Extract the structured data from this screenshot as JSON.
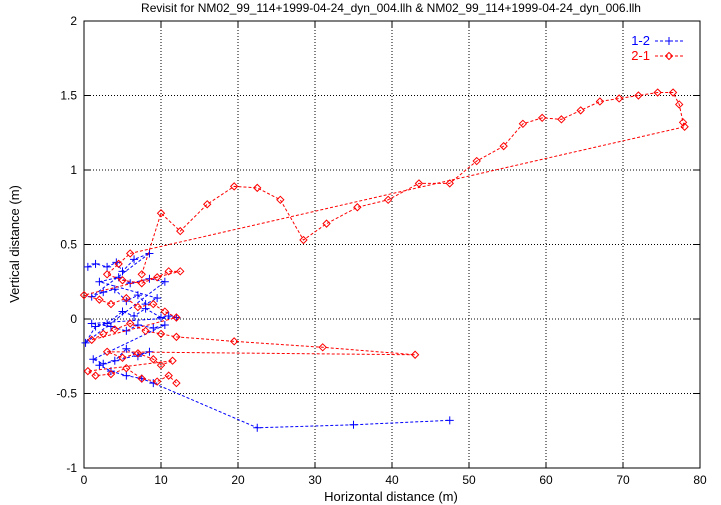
{
  "chart_data": {
    "type": "line",
    "title": "Revisit for NM02_99_114+1999-04-24_dyn_004.llh & NM02_99_114+1999-04-24_dyn_006.llh",
    "xlabel": "Horizontal distance (m)",
    "ylabel": "Vertical distance (m)",
    "xlim": [
      0,
      80
    ],
    "ylim": [
      -1,
      2
    ],
    "xticks": [
      "0",
      "10",
      "20",
      "30",
      "40",
      "50",
      "60",
      "70",
      "80"
    ],
    "yticks": [
      "-1",
      "-0.5",
      "0",
      "0.5",
      "1",
      "1.5",
      "2"
    ],
    "grid": true,
    "legend_position": "top-right",
    "series": [
      {
        "name": "1-2",
        "color": "#0000ff",
        "marker": "plus",
        "points": [
          [
            0.5,
            0.35
          ],
          [
            1.5,
            0.37
          ],
          [
            3.0,
            0.35
          ],
          [
            4.2,
            0.38
          ],
          [
            5.0,
            0.32
          ],
          [
            6.5,
            0.4
          ],
          [
            8.5,
            0.44
          ],
          [
            1.0,
            0.15
          ],
          [
            2.5,
            0.18
          ],
          [
            4.0,
            0.2
          ],
          [
            5.5,
            0.12
          ],
          [
            7.0,
            0.16
          ],
          [
            8.0,
            0.1
          ],
          [
            9.5,
            0.14
          ],
          [
            2.0,
            0.25
          ],
          [
            4.5,
            0.28
          ],
          [
            6.0,
            0.24
          ],
          [
            8.5,
            0.27
          ],
          [
            10.5,
            0.25
          ],
          [
            0.2,
            -0.16
          ],
          [
            1.5,
            -0.05
          ],
          [
            3.0,
            -0.03
          ],
          [
            5.0,
            0.05
          ],
          [
            6.5,
            0.02
          ],
          [
            8.0,
            0.07
          ],
          [
            10.0,
            0.01
          ],
          [
            11.0,
            0.02
          ],
          [
            12.0,
            0.01
          ],
          [
            1.0,
            -0.03
          ],
          [
            3.5,
            -0.05
          ],
          [
            5.5,
            -0.08
          ],
          [
            7.0,
            -0.04
          ],
          [
            9.0,
            -0.06
          ],
          [
            10.5,
            -0.04
          ],
          [
            1.2,
            -0.27
          ],
          [
            2.5,
            -0.3
          ],
          [
            4.0,
            -0.28
          ],
          [
            5.5,
            -0.2
          ],
          [
            7.0,
            -0.25
          ],
          [
            8.5,
            -0.22
          ],
          [
            2.0,
            -0.31
          ],
          [
            3.5,
            -0.35
          ],
          [
            5.5,
            -0.38
          ],
          [
            7.5,
            -0.4
          ],
          [
            9.0,
            -0.43
          ],
          [
            22.5,
            -0.73
          ],
          [
            35.0,
            -0.71
          ],
          [
            47.5,
            -0.68
          ]
        ]
      },
      {
        "name": "2-1",
        "color": "#ff0000",
        "marker": "diamond",
        "points": [
          [
            7.5,
            0.3
          ],
          [
            10.0,
            0.71
          ],
          [
            12.5,
            0.59
          ],
          [
            16.0,
            0.77
          ],
          [
            19.5,
            0.89
          ],
          [
            22.5,
            0.88
          ],
          [
            25.5,
            0.8
          ],
          [
            28.5,
            0.53
          ],
          [
            31.5,
            0.64
          ],
          [
            35.5,
            0.75
          ],
          [
            39.5,
            0.8
          ],
          [
            43.5,
            0.91
          ],
          [
            47.5,
            0.91
          ],
          [
            51.0,
            1.06
          ],
          [
            54.5,
            1.16
          ],
          [
            57.0,
            1.31
          ],
          [
            59.5,
            1.35
          ],
          [
            62.0,
            1.34
          ],
          [
            64.5,
            1.4
          ],
          [
            67.0,
            1.46
          ],
          [
            69.5,
            1.48
          ],
          [
            72.0,
            1.5
          ],
          [
            74.5,
            1.52
          ],
          [
            76.5,
            1.52
          ],
          [
            77.3,
            1.44
          ],
          [
            77.8,
            1.32
          ],
          [
            78.0,
            1.29
          ],
          [
            6.0,
            0.44
          ],
          [
            4.5,
            0.37
          ],
          [
            3.0,
            0.3
          ],
          [
            5.0,
            0.26
          ],
          [
            7.5,
            0.24
          ],
          [
            9.5,
            0.28
          ],
          [
            11.0,
            0.32
          ],
          [
            12.5,
            0.32
          ],
          [
            0.0,
            0.16
          ],
          [
            2.0,
            0.13
          ],
          [
            3.5,
            0.1
          ],
          [
            5.5,
            0.14
          ],
          [
            7.0,
            0.08
          ],
          [
            9.0,
            0.1
          ],
          [
            10.5,
            0.05
          ],
          [
            12.0,
            0.01
          ],
          [
            1.0,
            -0.14
          ],
          [
            2.5,
            -0.1
          ],
          [
            4.0,
            -0.07
          ],
          [
            6.0,
            -0.03
          ],
          [
            8.0,
            -0.08
          ],
          [
            10.0,
            -0.1
          ],
          [
            12.0,
            -0.12
          ],
          [
            19.5,
            -0.15
          ],
          [
            31.0,
            -0.19
          ],
          [
            43.0,
            -0.24
          ],
          [
            3.0,
            -0.22
          ],
          [
            5.0,
            -0.26
          ],
          [
            7.0,
            -0.23
          ],
          [
            9.0,
            -0.27
          ],
          [
            10.0,
            -0.31
          ],
          [
            11.5,
            -0.28
          ],
          [
            0.5,
            -0.35
          ],
          [
            1.5,
            -0.38
          ],
          [
            3.5,
            -0.37
          ],
          [
            5.5,
            -0.33
          ],
          [
            7.5,
            -0.4
          ],
          [
            9.5,
            -0.42
          ],
          [
            11.0,
            -0.38
          ],
          [
            12.0,
            -0.43
          ]
        ]
      }
    ]
  }
}
